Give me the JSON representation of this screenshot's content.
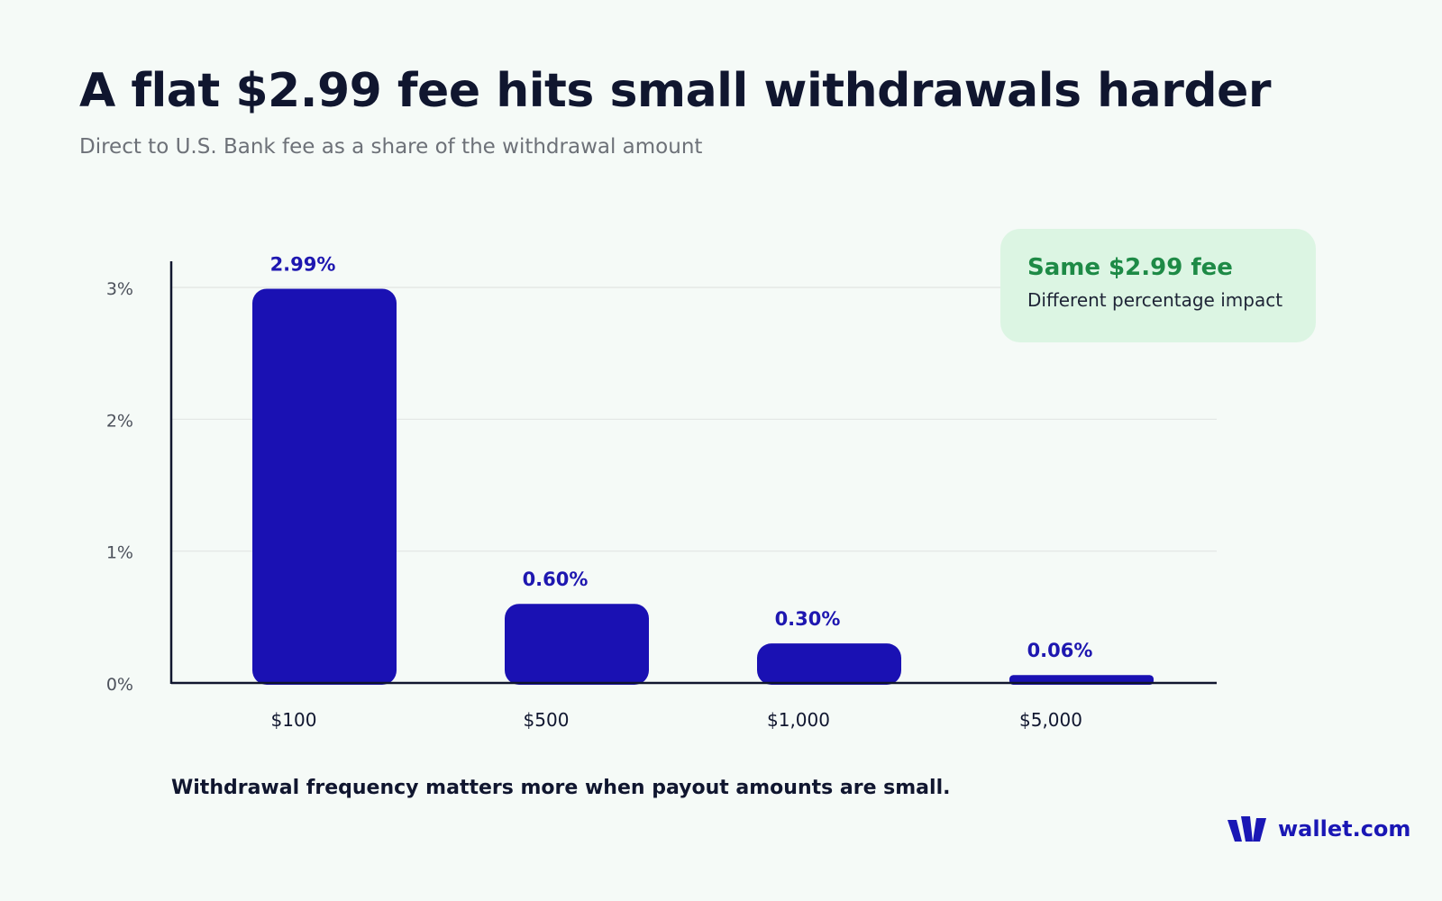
{
  "page": {
    "title": "A flat $2.99 fee hits small withdrawals harder",
    "subtitle": "Direct to U.S. Bank fee as a share of the withdrawal amount",
    "footnote": "Withdrawal frequency matters more when payout amounts are small."
  },
  "callout": {
    "title": "Same $2.99 fee",
    "text": "Different percentage impact"
  },
  "brand": {
    "name": "wallet.com",
    "color": "#1a17b5"
  },
  "colors": {
    "bar": "#1a11b3",
    "value_label": "#1e17b0",
    "axis": "#10162f",
    "grid": "#e2e5e3",
    "tick_label": "#4d525c",
    "callout_accent": "#1e8a46"
  },
  "chart_data": {
    "type": "bar",
    "categories": [
      "$100",
      "$500",
      "$1,000",
      "$5,000"
    ],
    "values": [
      2.99,
      0.6,
      0.3,
      0.06
    ],
    "value_labels": [
      "2.99%",
      "0.60%",
      "0.30%",
      "0.06%"
    ],
    "yticks": [
      0,
      1,
      2,
      3
    ],
    "ytick_labels": [
      "0%",
      "1%",
      "2%",
      "3%"
    ],
    "ylim": [
      0,
      3
    ],
    "grid": true,
    "legend": "none"
  }
}
